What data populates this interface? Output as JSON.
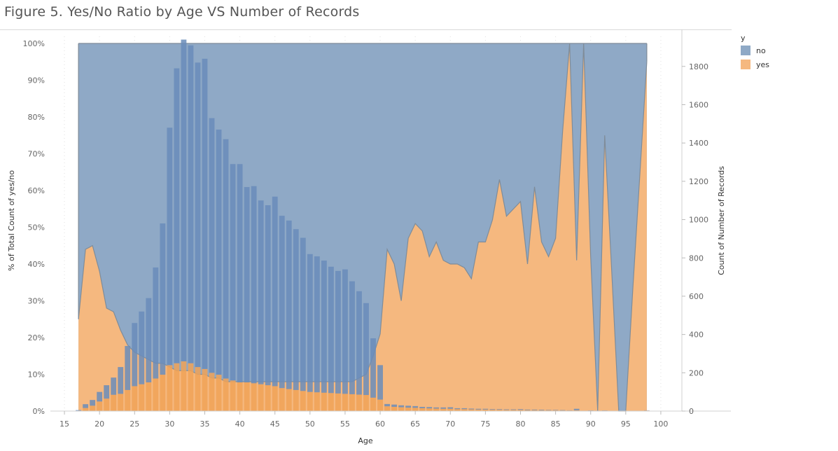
{
  "title": "Figure 5. Yes/No Ratio by Age VS Number of Records",
  "legend": {
    "title": "y",
    "items": [
      {
        "label": "no",
        "color": "#8fa9c6"
      },
      {
        "label": "yes",
        "color": "#f5b87f"
      }
    ]
  },
  "chart_data": {
    "type": "area",
    "title": "Figure 5. Yes/No Ratio by Age VS Number of Records",
    "xlabel": "Age",
    "ylabel_left": "% of Total Count of yes/no",
    "ylabel_right": "Count of Number of Records",
    "xlim": [
      13,
      103
    ],
    "x_ticks": [
      15,
      20,
      25,
      30,
      35,
      40,
      45,
      50,
      55,
      60,
      65,
      70,
      75,
      80,
      85,
      90,
      95,
      100
    ],
    "y_left_lim": [
      0,
      1
    ],
    "y_left_ticks": [
      "0%",
      "10%",
      "20%",
      "30%",
      "40%",
      "50%",
      "60%",
      "70%",
      "80%",
      "90%",
      "100%"
    ],
    "y_right_lim": [
      0,
      1920
    ],
    "y_right_ticks": [
      0,
      200,
      400,
      600,
      800,
      1000,
      1200,
      1400,
      1600,
      1800
    ],
    "colors": {
      "no_area": "#8fa9c6",
      "yes_area": "#f5b87f",
      "no_bar": "#6a8cba",
      "yes_bar": "#f0a257",
      "line": "#7f8c99"
    },
    "yes_ratio": {
      "x": [
        17,
        18,
        19,
        20,
        21,
        22,
        23,
        24,
        25,
        26,
        27,
        28,
        29,
        30,
        31,
        32,
        33,
        34,
        35,
        36,
        37,
        38,
        39,
        40,
        41,
        42,
        43,
        44,
        45,
        46,
        47,
        48,
        49,
        50,
        51,
        52,
        53,
        54,
        55,
        56,
        57,
        58,
        59,
        60,
        61,
        62,
        63,
        64,
        65,
        66,
        67,
        68,
        69,
        70,
        71,
        72,
        73,
        74,
        75,
        76,
        77,
        78,
        79,
        80,
        81,
        82,
        83,
        84,
        85,
        86,
        87,
        88,
        89,
        90,
        91,
        92,
        93,
        94,
        95,
        96,
        97,
        98
      ],
      "values": [
        0.25,
        0.44,
        0.45,
        0.38,
        0.28,
        0.27,
        0.22,
        0.18,
        0.16,
        0.15,
        0.14,
        0.13,
        0.13,
        0.12,
        0.11,
        0.11,
        0.11,
        0.1,
        0.1,
        0.09,
        0.09,
        0.08,
        0.08,
        0.08,
        0.08,
        0.08,
        0.08,
        0.08,
        0.08,
        0.08,
        0.08,
        0.08,
        0.08,
        0.08,
        0.08,
        0.08,
        0.08,
        0.08,
        0.08,
        0.08,
        0.09,
        0.1,
        0.15,
        0.21,
        0.44,
        0.4,
        0.3,
        0.47,
        0.51,
        0.49,
        0.42,
        0.46,
        0.41,
        0.4,
        0.4,
        0.39,
        0.36,
        0.46,
        0.46,
        0.52,
        0.63,
        0.53,
        0.55,
        0.57,
        0.4,
        0.61,
        0.46,
        0.42,
        0.47,
        0.76,
        1.0,
        0.41,
        1.0,
        0.42,
        0.0,
        0.75,
        0.38,
        0.0,
        0.0,
        0.33,
        0.64,
        0.95
      ]
    },
    "record_counts": {
      "x": [
        17,
        18,
        19,
        20,
        21,
        22,
        23,
        24,
        25,
        26,
        27,
        28,
        29,
        30,
        31,
        32,
        33,
        34,
        35,
        36,
        37,
        38,
        39,
        40,
        41,
        42,
        43,
        44,
        45,
        46,
        47,
        48,
        49,
        50,
        51,
        52,
        53,
        54,
        55,
        56,
        57,
        58,
        59,
        60,
        61,
        62,
        63,
        64,
        65,
        66,
        67,
        68,
        69,
        70,
        71,
        72,
        73,
        74,
        75,
        76,
        77,
        78,
        79,
        80,
        81,
        82,
        83,
        84,
        85,
        86,
        87,
        88,
        89,
        90,
        91,
        92,
        93,
        94,
        95,
        96,
        97,
        98
      ],
      "no": [
        3,
        20,
        30,
        50,
        70,
        90,
        140,
        230,
        330,
        380,
        440,
        580,
        790,
        1240,
        1540,
        1680,
        1660,
        1590,
        1620,
        1330,
        1280,
        1250,
        1130,
        1140,
        1020,
        1030,
        960,
        940,
        990,
        900,
        880,
        840,
        800,
        720,
        710,
        690,
        660,
        640,
        650,
        590,
        540,
        480,
        310,
        180,
        12,
        12,
        10,
        10,
        9,
        7,
        7,
        6,
        7,
        8,
        5,
        5,
        4,
        4,
        4,
        3,
        3,
        3,
        3,
        4,
        3,
        3,
        3,
        2,
        2,
        2,
        1,
        8,
        0,
        1,
        1,
        1,
        0,
        0,
        0,
        0,
        0,
        1
      ],
      "yes": [
        2,
        16,
        28,
        50,
        65,
        85,
        90,
        110,
        130,
        140,
        150,
        170,
        190,
        240,
        250,
        260,
        250,
        230,
        220,
        200,
        190,
        170,
        160,
        150,
        150,
        145,
        140,
        135,
        130,
        120,
        115,
        110,
        105,
        100,
        98,
        96,
        94,
        92,
        90,
        88,
        86,
        84,
        70,
        60,
        25,
        22,
        20,
        18,
        17,
        15,
        14,
        13,
        12,
        12,
        10,
        10,
        9,
        8,
        8,
        7,
        7,
        6,
        6,
        6,
        5,
        5,
        4,
        4,
        4,
        3,
        3,
        4,
        2,
        2,
        1,
        2,
        1,
        0,
        0,
        1,
        2,
        3
      ]
    }
  }
}
